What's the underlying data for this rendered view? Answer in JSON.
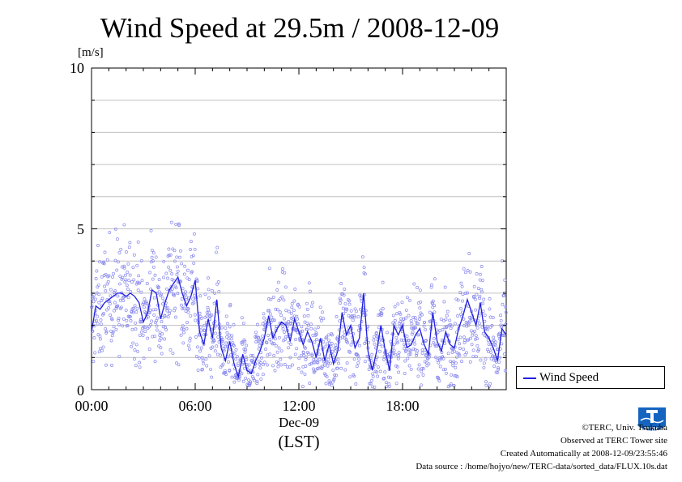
{
  "chart_data": {
    "type": "scatter",
    "title": "Wind Speed at 29.5m / 2008-12-09",
    "ylabel": "[m/s]",
    "xlabel": "(LST)",
    "x_date_label": "Dec-09",
    "x_ticks": [
      "00:00",
      "06:00",
      "12:00",
      "18:00"
    ],
    "y_ticks": [
      "0",
      "5",
      "10"
    ],
    "xlim": [
      "00:00",
      "24:00"
    ],
    "ylim": [
      0,
      10
    ],
    "grid": true,
    "legend_position": "right",
    "series": [
      {
        "name": "Wind Speed",
        "style": "line with scattered 10 s samples",
        "x_hours": [
          0.0,
          0.25,
          0.5,
          0.75,
          1.0,
          1.25,
          1.5,
          1.75,
          2.0,
          2.25,
          2.5,
          2.75,
          3.0,
          3.25,
          3.5,
          3.75,
          4.0,
          4.25,
          4.5,
          4.75,
          5.0,
          5.25,
          5.5,
          5.75,
          6.0,
          6.25,
          6.5,
          6.75,
          7.0,
          7.25,
          7.5,
          7.75,
          8.0,
          8.25,
          8.5,
          8.75,
          9.0,
          9.25,
          9.5,
          9.75,
          10.0,
          10.25,
          10.5,
          10.75,
          11.0,
          11.25,
          11.5,
          11.75,
          12.0,
          12.25,
          12.5,
          12.75,
          13.0,
          13.25,
          13.5,
          13.75,
          14.0,
          14.25,
          14.5,
          14.75,
          15.0,
          15.25,
          15.5,
          15.75,
          16.0,
          16.25,
          16.5,
          16.75,
          17.0,
          17.25,
          17.5,
          17.75,
          18.0,
          18.25,
          18.5,
          18.75,
          19.0,
          19.25,
          19.5,
          19.75,
          20.0,
          20.25,
          20.5,
          20.75,
          21.0,
          21.25,
          21.5,
          21.75,
          22.0,
          22.25,
          22.5,
          22.75,
          23.0,
          23.25,
          23.5,
          23.75,
          24.0
        ],
        "values": [
          1.8,
          2.6,
          2.5,
          2.7,
          2.8,
          2.9,
          3.0,
          3.0,
          2.9,
          3.0,
          2.9,
          2.7,
          2.1,
          2.4,
          3.1,
          3.0,
          2.2,
          2.7,
          3.1,
          3.3,
          3.5,
          3.0,
          2.6,
          2.9,
          3.4,
          1.8,
          1.4,
          2.2,
          1.6,
          2.8,
          1.3,
          0.9,
          1.5,
          0.8,
          0.4,
          1.1,
          0.6,
          0.5,
          0.9,
          1.2,
          1.6,
          2.3,
          1.6,
          1.9,
          2.1,
          2.0,
          1.5,
          2.2,
          1.8,
          1.4,
          1.8,
          1.5,
          1.0,
          1.6,
          0.9,
          1.4,
          0.8,
          1.2,
          2.4,
          1.7,
          2.0,
          1.3,
          1.6,
          3.0,
          1.2,
          0.6,
          1.2,
          2.0,
          1.2,
          0.6,
          2.0,
          1.7,
          2.0,
          1.3,
          1.4,
          1.7,
          1.9,
          1.4,
          1.1,
          2.4,
          1.5,
          1.2,
          1.8,
          1.4,
          1.3,
          1.9,
          2.3,
          2.8,
          2.4,
          2.0,
          2.7,
          1.8,
          1.6,
          1.3,
          0.9,
          1.9,
          1.7
        ]
      }
    ]
  },
  "colors": {
    "line": "#1f1fe0",
    "scatter": "#8888ee",
    "grid": "#c0c0c0"
  },
  "credits": {
    "copyright": "©TERC, Univ. Tsukuba",
    "observed": "Observed at TERC Tower site",
    "created": "Created Automatically at 2008-12-09/23:55:46",
    "source": "Data source : /home/hojyo/new/TERC-data/sorted_data/FLUX.10s.dat"
  },
  "logo": {
    "text": "TERC",
    "icon": "terc-logo-icon"
  }
}
